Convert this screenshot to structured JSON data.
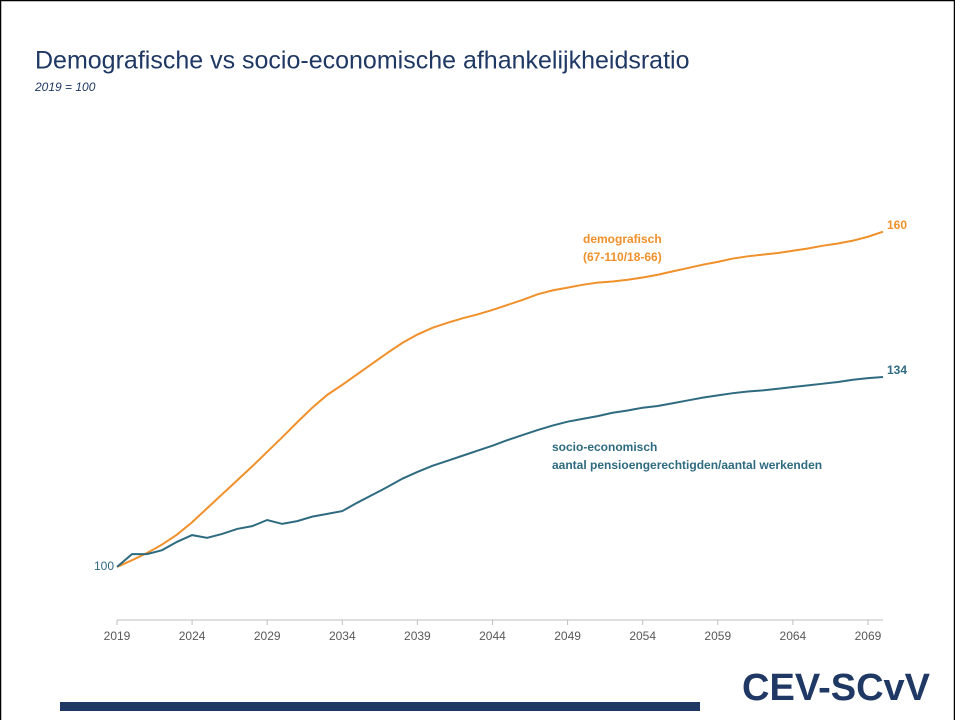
{
  "chart_data": {
    "type": "line",
    "title": "Demografische vs socio-economische afhankelijkheidsratio",
    "subtitle": "2019 = 100",
    "x": [
      2019,
      2020,
      2021,
      2022,
      2023,
      2024,
      2025,
      2026,
      2027,
      2028,
      2029,
      2030,
      2031,
      2032,
      2033,
      2034,
      2035,
      2036,
      2037,
      2038,
      2039,
      2040,
      2041,
      2042,
      2043,
      2044,
      2045,
      2046,
      2047,
      2048,
      2049,
      2050,
      2051,
      2052,
      2053,
      2054,
      2055,
      2056,
      2057,
      2058,
      2059,
      2060,
      2061,
      2062,
      2063,
      2064,
      2065,
      2066,
      2067,
      2068,
      2069,
      2070
    ],
    "series": [
      {
        "name": [
          "demografisch",
          "(67-110/18-66)"
        ],
        "color": "#f0902a",
        "values": [
          100,
          101.2,
          102.5,
          104,
          105.8,
          108,
          110.5,
          113,
          115.5,
          118,
          120.6,
          123.2,
          125.9,
          128.5,
          130.8,
          132.6,
          134.5,
          136.4,
          138.3,
          140.1,
          141.6,
          142.8,
          143.7,
          144.5,
          145.2,
          146,
          146.9,
          147.8,
          148.8,
          149.5,
          150,
          150.5,
          150.9,
          151.1,
          151.4,
          151.8,
          152.3,
          152.9,
          153.5,
          154.1,
          154.6,
          155.2,
          155.6,
          155.9,
          156.2,
          156.6,
          157,
          157.5,
          157.9,
          158.4,
          159.1,
          160
        ]
      },
      {
        "name": [
          "socio-economisch",
          "aantal pensioengerechtigden/aantal werkenden"
        ],
        "color": "#2f6b80",
        "values": [
          100,
          102.3,
          102.3,
          103,
          104.5,
          105.7,
          105.2,
          105.9,
          106.8,
          107.3,
          108.4,
          107.7,
          108.2,
          109,
          109.5,
          110,
          111.5,
          112.9,
          114.3,
          115.8,
          117,
          118.1,
          119,
          119.9,
          120.8,
          121.7,
          122.7,
          123.6,
          124.5,
          125.3,
          126,
          126.5,
          127,
          127.6,
          128,
          128.5,
          128.8,
          129.3,
          129.8,
          130.3,
          130.7,
          131.1,
          131.4,
          131.6,
          131.9,
          132.2,
          132.5,
          132.8,
          133.1,
          133.5,
          133.8,
          134
        ]
      }
    ],
    "xlim": [
      2019,
      2070
    ],
    "xticks": [
      2019,
      2024,
      2029,
      2034,
      2039,
      2044,
      2049,
      2054,
      2059,
      2064,
      2069
    ],
    "ylim": [
      90.5,
      180
    ]
  },
  "logo": "CEV-SCvV"
}
